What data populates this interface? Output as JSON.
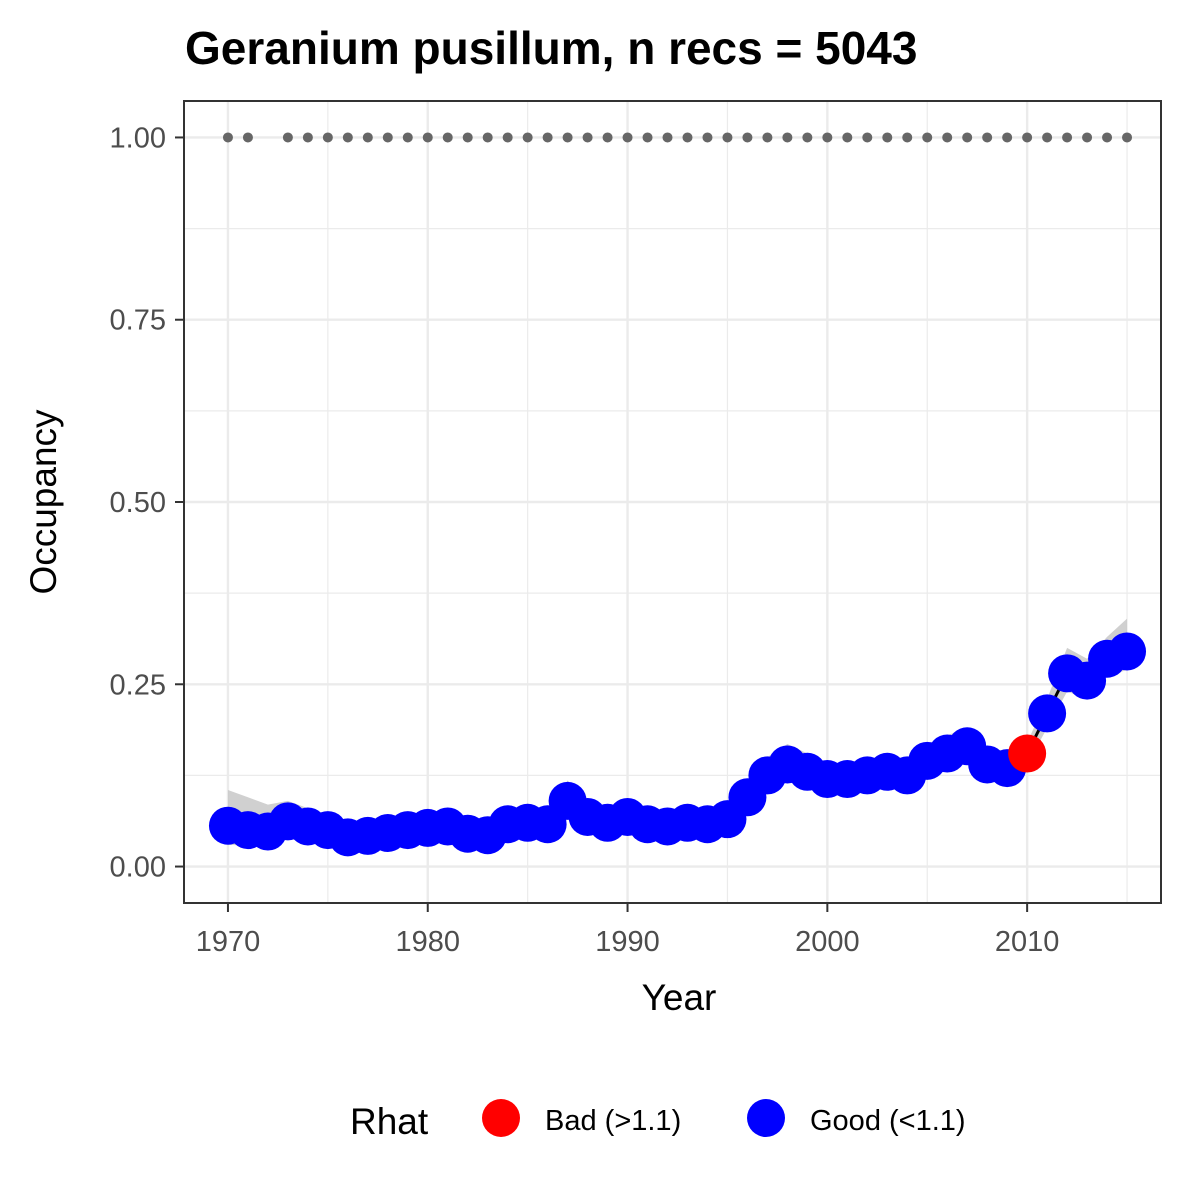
{
  "chart_data": {
    "type": "line",
    "title": "Geranium pusillum, n recs = 5043",
    "xlabel": "Year",
    "ylabel": "Occupancy",
    "xlim": [
      1967.8,
      2016.7
    ],
    "ylim": [
      -0.05,
      1.05
    ],
    "x_ticks": [
      1970,
      1980,
      1990,
      2000,
      2010
    ],
    "x_tick_labels": [
      "1970",
      "1980",
      "1990",
      "2000",
      "2010"
    ],
    "y_ticks": [
      0.0,
      0.25,
      0.5,
      0.75,
      1.0
    ],
    "y_tick_labels": [
      "0.00",
      "0.25",
      "0.50",
      "0.75",
      "1.00"
    ],
    "grid": true,
    "legend": {
      "title": "Rhat",
      "position": "bottom",
      "entries": [
        {
          "label": "Bad (>1.1)",
          "color": "#ff0000"
        },
        {
          "label": "Good (<1.1)",
          "color": "#0000ff"
        }
      ]
    },
    "series": {
      "x": [
        1970,
        1971,
        1972,
        1973,
        1974,
        1975,
        1976,
        1977,
        1978,
        1979,
        1980,
        1981,
        1982,
        1983,
        1984,
        1985,
        1986,
        1987,
        1988,
        1989,
        1990,
        1991,
        1992,
        1993,
        1994,
        1995,
        1996,
        1997,
        1998,
        1999,
        2000,
        2001,
        2002,
        2003,
        2004,
        2005,
        2006,
        2007,
        2008,
        2009,
        2010,
        2011,
        2012,
        2013,
        2014,
        2015
      ],
      "y": [
        0.056,
        0.05,
        0.048,
        0.062,
        0.055,
        0.05,
        0.04,
        0.042,
        0.046,
        0.05,
        0.053,
        0.055,
        0.045,
        0.043,
        0.058,
        0.06,
        0.058,
        0.09,
        0.068,
        0.06,
        0.068,
        0.058,
        0.055,
        0.06,
        0.058,
        0.065,
        0.095,
        0.125,
        0.14,
        0.13,
        0.12,
        0.12,
        0.125,
        0.13,
        0.125,
        0.145,
        0.155,
        0.165,
        0.14,
        0.135,
        0.155,
        0.21,
        0.265,
        0.255,
        0.285,
        0.295
      ],
      "lower": [
        0.03,
        0.028,
        0.026,
        0.038,
        0.034,
        0.03,
        0.022,
        0.024,
        0.027,
        0.031,
        0.034,
        0.035,
        0.028,
        0.026,
        0.038,
        0.04,
        0.038,
        0.065,
        0.048,
        0.042,
        0.048,
        0.04,
        0.037,
        0.042,
        0.04,
        0.047,
        0.075,
        0.105,
        0.12,
        0.112,
        0.102,
        0.103,
        0.108,
        0.112,
        0.107,
        0.125,
        0.135,
        0.143,
        0.12,
        0.115,
        0.14,
        0.19,
        0.24,
        0.23,
        0.26,
        0.27
      ],
      "upper": [
        0.105,
        0.095,
        0.085,
        0.09,
        0.08,
        0.07,
        0.058,
        0.06,
        0.065,
        0.068,
        0.072,
        0.075,
        0.063,
        0.06,
        0.078,
        0.08,
        0.078,
        0.118,
        0.09,
        0.08,
        0.09,
        0.078,
        0.075,
        0.08,
        0.078,
        0.085,
        0.115,
        0.15,
        0.168,
        0.155,
        0.142,
        0.142,
        0.145,
        0.15,
        0.145,
        0.168,
        0.18,
        0.19,
        0.163,
        0.158,
        0.17,
        0.23,
        0.3,
        0.285,
        0.315,
        0.34
      ],
      "rhat": [
        "good",
        "good",
        "good",
        "good",
        "good",
        "good",
        "good",
        "good",
        "good",
        "good",
        "good",
        "good",
        "good",
        "good",
        "good",
        "good",
        "good",
        "good",
        "good",
        "good",
        "good",
        "good",
        "good",
        "good",
        "good",
        "good",
        "good",
        "good",
        "good",
        "good",
        "good",
        "good",
        "good",
        "good",
        "good",
        "good",
        "good",
        "good",
        "good",
        "good",
        "bad",
        "good",
        "good",
        "good",
        "good",
        "good"
      ]
    },
    "data_years_marker": {
      "y": 1.0,
      "color": "#666666",
      "x": [
        1970,
        1971,
        1973,
        1974,
        1975,
        1976,
        1977,
        1978,
        1979,
        1980,
        1981,
        1982,
        1983,
        1984,
        1985,
        1986,
        1987,
        1988,
        1989,
        1990,
        1991,
        1992,
        1993,
        1994,
        1995,
        1996,
        1997,
        1998,
        1999,
        2000,
        2001,
        2002,
        2003,
        2004,
        2005,
        2006,
        2007,
        2008,
        2009,
        2010,
        2011,
        2012,
        2013,
        2014,
        2015
      ]
    },
    "colors": {
      "good": "#0000ff",
      "bad": "#ff0000",
      "ribbon": "#c8c8c8",
      "line": "#000000",
      "grid": "#ebebeb",
      "panel_border": "#333333"
    }
  }
}
